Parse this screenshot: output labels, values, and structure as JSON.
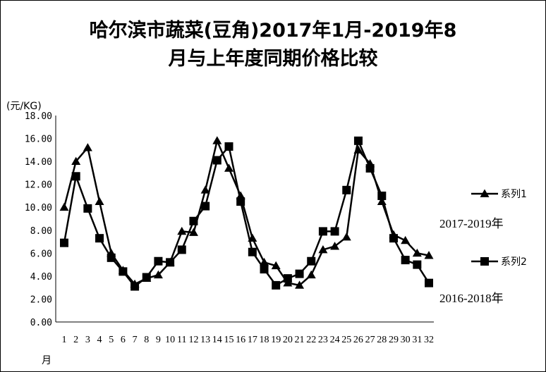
{
  "chart_data": {
    "type": "line",
    "title_line1": "哈尔滨市蔬菜(豆角)2017年1月-2019年8",
    "title_line2": "月与上年度同期价格比较",
    "ylabel": "(元/KG)",
    "xlabel": "月",
    "ylim": [
      0,
      18
    ],
    "yticks": [
      "0.00",
      "2.00",
      "4.00",
      "6.00",
      "8.00",
      "10.00",
      "12.00",
      "14.00",
      "16.00",
      "18.00"
    ],
    "xlim": [
      1,
      32
    ],
    "categories": [
      "1",
      "2",
      "3",
      "4",
      "5",
      "6",
      "7",
      "8",
      "9",
      "10",
      "11",
      "12",
      "13",
      "14",
      "15",
      "16",
      "17",
      "18",
      "19",
      "20",
      "21",
      "22",
      "23",
      "24",
      "25",
      "26",
      "27",
      "28",
      "29",
      "30",
      "31",
      "32"
    ],
    "grid": false,
    "legend_position": "right",
    "series": [
      {
        "name": "系列1",
        "note": "2017-2019年",
        "marker": "triangle",
        "color": "#000000",
        "values": [
          10.0,
          14.0,
          15.2,
          10.5,
          6.0,
          4.5,
          3.3,
          3.8,
          4.1,
          5.2,
          7.9,
          7.8,
          11.5,
          15.8,
          13.4,
          11.0,
          7.3,
          5.2,
          4.9,
          3.4,
          3.2,
          4.1,
          6.3,
          6.6,
          7.4,
          15.0,
          13.8,
          10.5,
          7.6,
          7.1,
          6.0,
          5.8
        ]
      },
      {
        "name": "系列2",
        "note": "2016-2018年",
        "marker": "square",
        "color": "#000000",
        "values": [
          6.9,
          12.7,
          9.9,
          7.3,
          5.6,
          4.4,
          3.1,
          3.9,
          5.3,
          5.2,
          6.3,
          8.8,
          10.1,
          14.1,
          15.3,
          10.5,
          6.1,
          4.6,
          3.2,
          3.8,
          4.2,
          5.3,
          7.9,
          7.9,
          11.5,
          15.8,
          13.4,
          11.0,
          7.3,
          5.4,
          5.0,
          3.4
        ]
      }
    ]
  }
}
